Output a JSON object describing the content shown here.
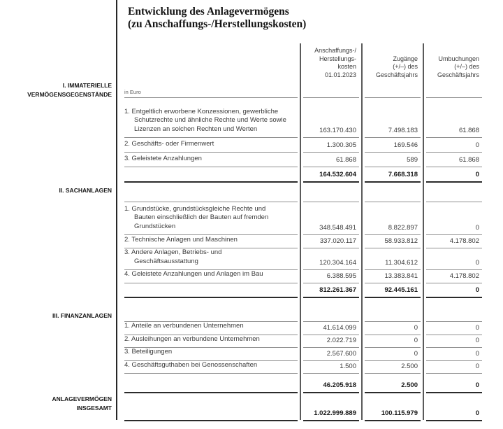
{
  "title": "Entwicklung des Anlagevermögens\n(zu Anschaffungs-/Herstellungskosten)",
  "unit_label": "in Euro",
  "colors": {
    "text": "#3a3a3a",
    "rule": "#8f8f8f",
    "rule_strong": "#2b2b2b"
  },
  "columns": [
    "Anschaffungs-/\nHerstellungs-\nkosten\n01.01.2023",
    "Zugänge\n(+/–) des\nGeschäftsjahrs",
    "Umbuchungen\n(+/–) des\nGeschäftsjahrs"
  ],
  "side_labels": {
    "section1": "I. IMMATERIELLE\nVERMÖGENSGEGENSTÄNDE",
    "section2": "II. SACHANLAGEN",
    "section3": "III. FINANZANLAGEN",
    "grand_total": "ANLAGEVERMÖGEN\nINSGESAMT"
  },
  "sections": [
    {
      "name": "Immaterielle Vermögensgegenstände",
      "rows": [
        {
          "label": "1. Entgeltlich erworbene Konzessionen, gewerbliche\nSchutzrechte und ähnliche Rechte und Werte sowie\nLizenzen an solchen Rechten und Werten",
          "values": [
            "163.170.430",
            "7.498.183",
            "61.868"
          ]
        },
        {
          "label": "2. Geschäfts- oder Firmenwert",
          "values": [
            "1.300.305",
            "169.546",
            "0"
          ]
        },
        {
          "label": "3. Geleistete Anzahlungen",
          "values": [
            "61.868",
            "589",
            "61.868"
          ]
        }
      ],
      "subtotal": [
        "164.532.604",
        "7.668.318",
        "0"
      ]
    },
    {
      "name": "Sachanlagen",
      "rows": [
        {
          "label": "1. Grundstücke, grundstücksgleiche Rechte und\nBauten einschließlich der Bauten auf fremden\nGrundstücken",
          "values": [
            "348.548.491",
            "8.822.897",
            "0"
          ]
        },
        {
          "label": "2. Technische Anlagen und Maschinen",
          "values": [
            "337.020.117",
            "58.933.812",
            "4.178.802"
          ]
        },
        {
          "label": "3. Andere Anlagen, Betriebs- und\nGeschäftsausstattung",
          "values": [
            "120.304.164",
            "11.304.612",
            "0"
          ]
        },
        {
          "label": "4. Geleistete Anzahlungen und Anlagen im Bau",
          "values": [
            "6.388.595",
            "13.383.841",
            "4.178.802"
          ]
        }
      ],
      "subtotal": [
        "812.261.367",
        "92.445.161",
        "0"
      ]
    },
    {
      "name": "Finanzanlagen",
      "rows": [
        {
          "label": "1. Anteile an verbundenen Unternehmen",
          "values": [
            "41.614.099",
            "0",
            "0"
          ]
        },
        {
          "label": "2. Ausleihungen an verbundene Unternehmen",
          "values": [
            "2.022.719",
            "0",
            "0"
          ]
        },
        {
          "label": "3. Beteiligungen",
          "values": [
            "2.567.600",
            "0",
            "0"
          ]
        },
        {
          "label": "4. Geschäftsguthaben bei Genossenschaften",
          "values": [
            "1.500",
            "2.500",
            "0"
          ]
        }
      ],
      "subtotal": [
        "46.205.918",
        "2.500",
        "0"
      ]
    }
  ],
  "grand_total": [
    "1.022.999.889",
    "100.115.979",
    "0"
  ]
}
